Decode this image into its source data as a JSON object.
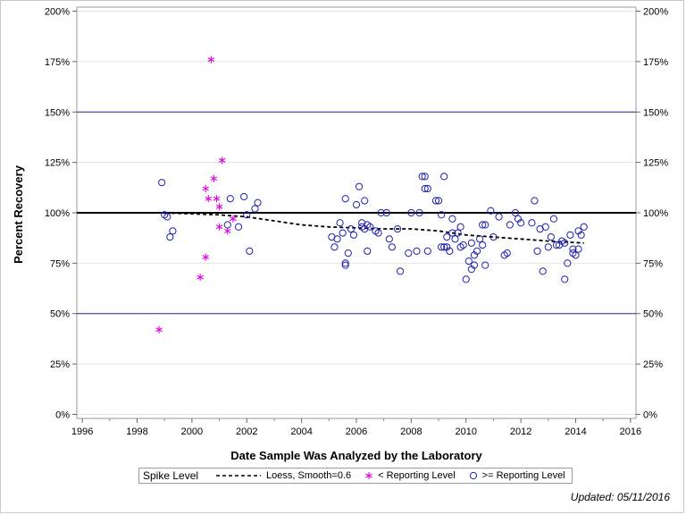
{
  "chart_data": {
    "type": "scatter",
    "title": "",
    "xlabel": "Date Sample Was Analyzed by the Laboratory",
    "ylabel": "Percent Recovery",
    "xlim": [
      1995.8,
      2016.2
    ],
    "ylim": [
      -2,
      202
    ],
    "x_ticks": [
      1996,
      1998,
      2000,
      2002,
      2004,
      2006,
      2008,
      2010,
      2012,
      2014,
      2016
    ],
    "y_ticks": [
      0,
      25,
      50,
      75,
      100,
      125,
      150,
      175,
      200
    ],
    "y_tick_labels": [
      "0%",
      "25%",
      "50%",
      "75%",
      "100%",
      "125%",
      "150%",
      "175%",
      "200%"
    ],
    "x_tick_labels": [
      "1996",
      "1998",
      "2000",
      "2002",
      "2004",
      "2006",
      "2008",
      "2010",
      "2012",
      "2014",
      "2016"
    ],
    "reference_lines": [
      {
        "y": 100,
        "style": "bold",
        "color": "#000000"
      },
      {
        "y": 150,
        "style": "thin",
        "color": "#2a2a8a"
      },
      {
        "y": 50,
        "style": "thin",
        "color": "#2a2a8a"
      }
    ],
    "grid": "horizontal",
    "secondary_y_axis": true,
    "legend_position": "bottom",
    "series": [
      {
        "name": "< Reporting Level",
        "marker": "asterisk",
        "color": "#e000e0",
        "points": [
          [
            1998.8,
            42
          ],
          [
            2000.3,
            68
          ],
          [
            2000.5,
            78
          ],
          [
            2000.5,
            112
          ],
          [
            2000.6,
            107
          ],
          [
            2000.7,
            176
          ],
          [
            2000.8,
            117
          ],
          [
            2000.9,
            107
          ],
          [
            2001.0,
            93
          ],
          [
            2001.0,
            103
          ],
          [
            2001.1,
            126
          ],
          [
            2001.3,
            91
          ],
          [
            2001.5,
            97
          ]
        ]
      },
      {
        "name": ">= Reporting Level",
        "marker": "circle",
        "color": "#2020b0",
        "points": [
          [
            1998.9,
            115
          ],
          [
            1999.0,
            99
          ],
          [
            1999.1,
            98
          ],
          [
            1999.2,
            88
          ],
          [
            1999.3,
            91
          ],
          [
            2001.3,
            94
          ],
          [
            2001.4,
            107
          ],
          [
            2001.7,
            93
          ],
          [
            2001.9,
            108
          ],
          [
            2002.0,
            99
          ],
          [
            2002.1,
            81
          ],
          [
            2002.3,
            102
          ],
          [
            2002.4,
            105
          ],
          [
            2005.1,
            88
          ],
          [
            2005.2,
            83
          ],
          [
            2005.3,
            87
          ],
          [
            2005.4,
            95
          ],
          [
            2005.5,
            90
          ],
          [
            2005.6,
            75
          ],
          [
            2005.6,
            74
          ],
          [
            2005.6,
            107
          ],
          [
            2005.7,
            80
          ],
          [
            2005.8,
            92
          ],
          [
            2005.9,
            89
          ],
          [
            2006.0,
            104
          ],
          [
            2006.1,
            113
          ],
          [
            2006.2,
            93
          ],
          [
            2006.2,
            95
          ],
          [
            2006.3,
            92
          ],
          [
            2006.3,
            106
          ],
          [
            2006.4,
            94
          ],
          [
            2006.4,
            81
          ],
          [
            2006.5,
            93
          ],
          [
            2006.7,
            91
          ],
          [
            2006.8,
            90
          ],
          [
            2006.9,
            100
          ],
          [
            2007.1,
            100
          ],
          [
            2007.2,
            87
          ],
          [
            2007.3,
            83
          ],
          [
            2007.5,
            92
          ],
          [
            2007.6,
            71
          ],
          [
            2007.9,
            80
          ],
          [
            2008.0,
            100
          ],
          [
            2008.2,
            81
          ],
          [
            2008.3,
            100
          ],
          [
            2008.4,
            118
          ],
          [
            2008.5,
            118
          ],
          [
            2008.5,
            112
          ],
          [
            2008.6,
            81
          ],
          [
            2008.6,
            112
          ],
          [
            2008.9,
            106
          ],
          [
            2009.0,
            106
          ],
          [
            2009.1,
            83
          ],
          [
            2009.1,
            99
          ],
          [
            2009.2,
            83
          ],
          [
            2009.2,
            118
          ],
          [
            2009.3,
            83
          ],
          [
            2009.3,
            88
          ],
          [
            2009.4,
            81
          ],
          [
            2009.5,
            97
          ],
          [
            2009.5,
            90
          ],
          [
            2009.6,
            87
          ],
          [
            2009.7,
            90
          ],
          [
            2009.8,
            93
          ],
          [
            2009.8,
            83
          ],
          [
            2009.9,
            84
          ],
          [
            2010.0,
            67
          ],
          [
            2010.1,
            76
          ],
          [
            2010.2,
            85
          ],
          [
            2010.2,
            72
          ],
          [
            2010.3,
            74
          ],
          [
            2010.3,
            79
          ],
          [
            2010.4,
            81
          ],
          [
            2010.5,
            87
          ],
          [
            2010.6,
            94
          ],
          [
            2010.6,
            84
          ],
          [
            2010.7,
            74
          ],
          [
            2010.7,
            94
          ],
          [
            2010.9,
            101
          ],
          [
            2011.0,
            88
          ],
          [
            2011.2,
            98
          ],
          [
            2011.4,
            79
          ],
          [
            2011.5,
            80
          ],
          [
            2011.6,
            94
          ],
          [
            2011.8,
            100
          ],
          [
            2011.9,
            97
          ],
          [
            2012.0,
            95
          ],
          [
            2012.4,
            95
          ],
          [
            2012.5,
            106
          ],
          [
            2012.6,
            81
          ],
          [
            2012.7,
            92
          ],
          [
            2012.8,
            71
          ],
          [
            2012.9,
            93
          ],
          [
            2013.0,
            83
          ],
          [
            2013.1,
            88
          ],
          [
            2013.2,
            97
          ],
          [
            2013.3,
            84
          ],
          [
            2013.4,
            84
          ],
          [
            2013.5,
            86
          ],
          [
            2013.6,
            85
          ],
          [
            2013.6,
            67
          ],
          [
            2013.7,
            75
          ],
          [
            2013.8,
            89
          ],
          [
            2013.9,
            80
          ],
          [
            2013.9,
            82
          ],
          [
            2014.0,
            79
          ],
          [
            2014.1,
            91
          ],
          [
            2014.1,
            82
          ],
          [
            2014.2,
            89
          ],
          [
            2014.3,
            93
          ]
        ]
      }
    ],
    "loess": {
      "name": "Loess, Smooth=0.6",
      "style": "dashed",
      "color": "#000000",
      "points": [
        [
          1998.8,
          100
        ],
        [
          2000,
          99.5
        ],
        [
          2001,
          99
        ],
        [
          2002,
          98
        ],
        [
          2003,
          96
        ],
        [
          2004,
          94
        ],
        [
          2005,
          93
        ],
        [
          2006,
          92.5
        ],
        [
          2007,
          92
        ],
        [
          2008,
          92
        ],
        [
          2009,
          91
        ],
        [
          2010,
          89
        ],
        [
          2011,
          88
        ],
        [
          2012,
          87
        ],
        [
          2013,
          86
        ],
        [
          2014.3,
          85
        ]
      ]
    }
  },
  "legend": {
    "title": "Spike Level",
    "loess_label": "Loess, Smooth=0.6",
    "below_label": "< Reporting Level",
    "above_label": ">= Reporting Level"
  },
  "footer": {
    "updated": "Updated: 05/11/2016"
  }
}
